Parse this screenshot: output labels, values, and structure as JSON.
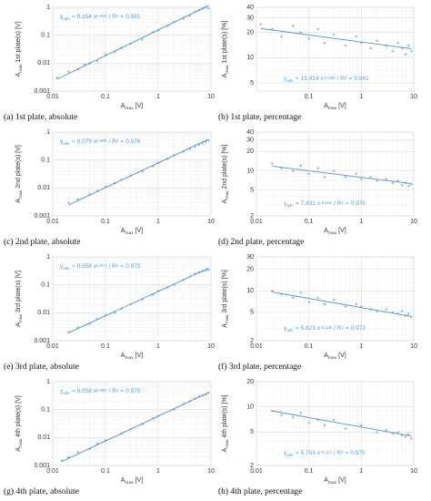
{
  "chart_data": [
    {
      "type": "scatter",
      "caption": "(a) 1st plate, absolute",
      "xlabel": [
        "A",
        "max",
        "[V]"
      ],
      "ylabel": [
        "A",
        "max",
        "1st plate(s) [V]"
      ],
      "log": true,
      "grid": true,
      "color": "#8fb4d9",
      "line_color": "#5b8fc7",
      "xlim": [
        0.01,
        10
      ],
      "ylim": [
        0.001,
        1
      ],
      "xticks": [
        0.01,
        0.1,
        1,
        10
      ],
      "yticks": [
        0.001,
        0.01,
        0.1,
        1
      ],
      "x": [
        0.012,
        0.02,
        0.03,
        0.04,
        0.05,
        0.07,
        0.1,
        0.15,
        0.2,
        0.3,
        0.5,
        0.8,
        1,
        1.5,
        2,
        3,
        4,
        5,
        6,
        7,
        8,
        9
      ],
      "values": [
        0.003,
        0.005,
        0.006,
        0.009,
        0.01,
        0.012,
        0.02,
        0.025,
        0.035,
        0.05,
        0.07,
        0.13,
        0.15,
        0.22,
        0.3,
        0.4,
        0.5,
        0.7,
        0.8,
        0.9,
        1.0,
        0.9
      ],
      "fit": {
        "prefix": [
          "y",
          "adn",
          "="
        ],
        "coef": 0.154,
        "x": "x",
        "exp": 0.918,
        "mid": [
          "/ R",
          "2",
          "="
        ],
        "r2": 0.981
      }
    },
    {
      "type": "scatter",
      "caption": "(b) 1st plate, percentage",
      "xlabel": [
        "A",
        "max",
        "[V]"
      ],
      "ylabel": [
        "A",
        "max",
        "1st plate(s) [%]"
      ],
      "log": true,
      "grid": true,
      "color": "#8fb4d9",
      "line_color": "#5b8fc7",
      "xlim": [
        0.01,
        10
      ],
      "ylim": [
        4,
        40
      ],
      "xticks": [
        0.1,
        1,
        10
      ],
      "yticks": [
        5,
        10,
        20,
        30,
        40
      ],
      "x": [
        0.012,
        0.02,
        0.03,
        0.05,
        0.07,
        0.1,
        0.15,
        0.2,
        0.3,
        0.5,
        0.8,
        1,
        1.5,
        2,
        3,
        4,
        5,
        6,
        7,
        8,
        9
      ],
      "values": [
        25,
        22,
        18,
        24,
        20,
        17,
        22,
        15,
        19,
        14,
        18,
        15,
        13,
        16,
        14,
        12,
        15,
        13,
        11,
        14,
        12
      ],
      "fit": {
        "prefix": [
          "y",
          "adn",
          "="
        ],
        "coef": 15.414,
        "x": "x",
        "exp": -0.084,
        "mid": [
          "/ R",
          "2",
          "="
        ],
        "r2": 0.981
      }
    },
    {
      "type": "scatter",
      "caption": "(c) 2nd plate, absolute",
      "xlabel": [
        "A",
        "max",
        "[V]"
      ],
      "ylabel": [
        "A",
        "max",
        "2nd plate(s) [V]"
      ],
      "log": true,
      "grid": true,
      "color": "#8fb4d9",
      "line_color": "#5b8fc7",
      "xlim": [
        0.01,
        10
      ],
      "ylim": [
        0.001,
        1
      ],
      "xticks": [
        0.01,
        0.1,
        1,
        10
      ],
      "yticks": [
        0.001,
        0.01,
        0.1,
        1
      ],
      "x": [
        0.02,
        0.03,
        0.05,
        0.07,
        0.1,
        0.15,
        0.2,
        0.3,
        0.5,
        0.8,
        1,
        1.5,
        2,
        3,
        4,
        5,
        6,
        7,
        8,
        9
      ],
      "values": [
        0.003,
        0.004,
        0.006,
        0.008,
        0.011,
        0.015,
        0.02,
        0.028,
        0.04,
        0.06,
        0.08,
        0.11,
        0.15,
        0.2,
        0.25,
        0.3,
        0.35,
        0.4,
        0.45,
        0.5
      ],
      "fit": {
        "prefix": [
          "y",
          "adn",
          "="
        ],
        "coef": 0.079,
        "x": "x",
        "exp": 0.888,
        "mid": [
          "/ R",
          "2",
          "="
        ],
        "r2": 0.976
      }
    },
    {
      "type": "scatter",
      "caption": "(d) 2nd plate, percentage",
      "xlabel": [
        "A",
        "max",
        "[V]"
      ],
      "ylabel": [
        "A",
        "max",
        "2nd plate(s) [%]"
      ],
      "log": true,
      "grid": true,
      "color": "#8fb4d9",
      "line_color": "#5b8fc7",
      "xlim": [
        0.01,
        10
      ],
      "ylim": [
        2,
        40
      ],
      "xticks": [
        0.01,
        0.1,
        1,
        10
      ],
      "yticks": [
        2,
        5,
        10,
        20,
        30,
        40
      ],
      "x": [
        0.02,
        0.03,
        0.05,
        0.07,
        0.1,
        0.15,
        0.2,
        0.3,
        0.5,
        0.8,
        1,
        1.5,
        2,
        3,
        4,
        5,
        6,
        7,
        8,
        9
      ],
      "values": [
        13,
        11,
        10,
        12,
        9,
        11,
        8,
        10,
        8,
        9,
        7.5,
        8,
        7,
        7.5,
        6.5,
        7,
        6,
        6.5,
        5.8,
        6.2
      ],
      "fit": {
        "prefix": [
          "y",
          "adn",
          "="
        ],
        "coef": 7.931,
        "x": "x",
        "exp": -0.102,
        "mid": [
          "/ R",
          "2",
          "="
        ],
        "r2": 0.976
      }
    },
    {
      "type": "scatter",
      "caption": "(e) 3rd plate, absolute",
      "xlabel": [
        "A",
        "max",
        "[V]"
      ],
      "ylabel": [
        "A",
        "max",
        "3rd plate(s) [V]"
      ],
      "log": true,
      "grid": true,
      "color": "#8fb4d9",
      "line_color": "#5b8fc7",
      "xlim": [
        0.01,
        10
      ],
      "ylim": [
        0.001,
        1
      ],
      "xticks": [
        0.01,
        0.1,
        1,
        10
      ],
      "yticks": [
        0.001,
        0.01,
        0.1,
        1
      ],
      "x": [
        0.02,
        0.03,
        0.05,
        0.07,
        0.1,
        0.15,
        0.2,
        0.3,
        0.5,
        0.8,
        1,
        1.5,
        2,
        3,
        4,
        5,
        6,
        7,
        8,
        9
      ],
      "values": [
        0.002,
        0.003,
        0.004,
        0.006,
        0.008,
        0.01,
        0.014,
        0.02,
        0.03,
        0.045,
        0.06,
        0.08,
        0.1,
        0.15,
        0.2,
        0.25,
        0.28,
        0.3,
        0.33,
        0.35
      ],
      "fit": {
        "prefix": [
          "y",
          "adn",
          "="
        ],
        "coef": 0.058,
        "x": "x",
        "exp": 0.871,
        "mid": [
          "/ R",
          "2",
          "="
        ],
        "r2": 0.972
      }
    },
    {
      "type": "scatter",
      "caption": "(f) 3rd plate, percentage",
      "xlabel": [
        "A",
        "max",
        "[V]"
      ],
      "ylabel": [
        "A",
        "max",
        "3rd plate(s) [%]"
      ],
      "log": true,
      "grid": true,
      "color": "#8fb4d9",
      "line_color": "#5b8fc7",
      "xlim": [
        0.01,
        10
      ],
      "ylim": [
        2,
        30
      ],
      "xticks": [
        0.01,
        0.1,
        1,
        10
      ],
      "yticks": [
        2,
        5,
        10,
        20,
        30
      ],
      "x": [
        0.02,
        0.03,
        0.05,
        0.07,
        0.1,
        0.15,
        0.2,
        0.3,
        0.5,
        0.8,
        1,
        1.5,
        2,
        3,
        4,
        5,
        6,
        7,
        8,
        9
      ],
      "values": [
        10,
        9,
        8,
        9.5,
        7,
        8,
        6.5,
        7.5,
        6,
        6.5,
        6,
        5.5,
        5.2,
        5.5,
        5,
        4.8,
        5.2,
        4.5,
        4.8,
        4.3
      ],
      "fit": {
        "prefix": [
          "y",
          "adn",
          "="
        ],
        "coef": 5.823,
        "x": "x",
        "exp": -0.129,
        "mid": [
          "/ R",
          "2",
          "="
        ],
        "r2": 0.972
      }
    },
    {
      "type": "scatter",
      "caption": "(g) 4th plate, absolute",
      "xlabel": [
        "A",
        "max",
        "[V]"
      ],
      "ylabel": [
        "A",
        "max",
        "4th plate(s) [V]"
      ],
      "log": true,
      "grid": true,
      "color": "#8fb4d9",
      "line_color": "#5b8fc7",
      "xlim": [
        0.01,
        10
      ],
      "ylim": [
        0.001,
        1
      ],
      "xticks": [
        0.01,
        0.1,
        1,
        10
      ],
      "yticks": [
        0.001,
        0.01,
        0.1,
        1
      ],
      "x": [
        0.015,
        0.02,
        0.03,
        0.05,
        0.07,
        0.1,
        0.2,
        0.3,
        0.5,
        0.8,
        1,
        2,
        3,
        4,
        5,
        6,
        7,
        8,
        9
      ],
      "values": [
        0.0015,
        0.002,
        0.003,
        0.004,
        0.006,
        0.008,
        0.014,
        0.02,
        0.03,
        0.05,
        0.06,
        0.1,
        0.16,
        0.2,
        0.25,
        0.3,
        0.32,
        0.35,
        0.4
      ],
      "fit": {
        "prefix": [
          "y",
          "adn",
          "="
        ],
        "coef": 0.058,
        "x": "x",
        "exp": 0.887,
        "mid": [
          "/ R",
          "2",
          "="
        ],
        "r2": 0.975
      }
    },
    {
      "type": "scatter",
      "caption": "(h) 4th plate, percentage",
      "xlabel": [
        "A",
        "max",
        "[V]"
      ],
      "ylabel": [
        "A",
        "max",
        "4th plate(s) [%]"
      ],
      "log": true,
      "grid": true,
      "color": "#8fb4d9",
      "line_color": "#5b8fc7",
      "xlim": [
        0.01,
        10
      ],
      "ylim": [
        2,
        20
      ],
      "xticks": [
        0.01,
        0.1,
        1,
        10
      ],
      "yticks": [
        2,
        5,
        10,
        20
      ],
      "x": [
        0.02,
        0.03,
        0.05,
        0.07,
        0.1,
        0.15,
        0.2,
        0.3,
        0.5,
        1,
        2,
        3,
        4,
        5,
        6,
        7,
        8,
        9
      ],
      "values": [
        9,
        8,
        7.5,
        8.5,
        6.5,
        7,
        6,
        7,
        5.5,
        6,
        5,
        5.3,
        4.8,
        5,
        4.6,
        4.4,
        4.7,
        4.2
      ],
      "fit": {
        "prefix": [
          "y",
          "adn",
          "="
        ],
        "coef": 5.753,
        "x": "x",
        "exp": -0.113,
        "mid": [
          "/ R",
          "2",
          "="
        ],
        "r2": 0.975
      }
    }
  ]
}
